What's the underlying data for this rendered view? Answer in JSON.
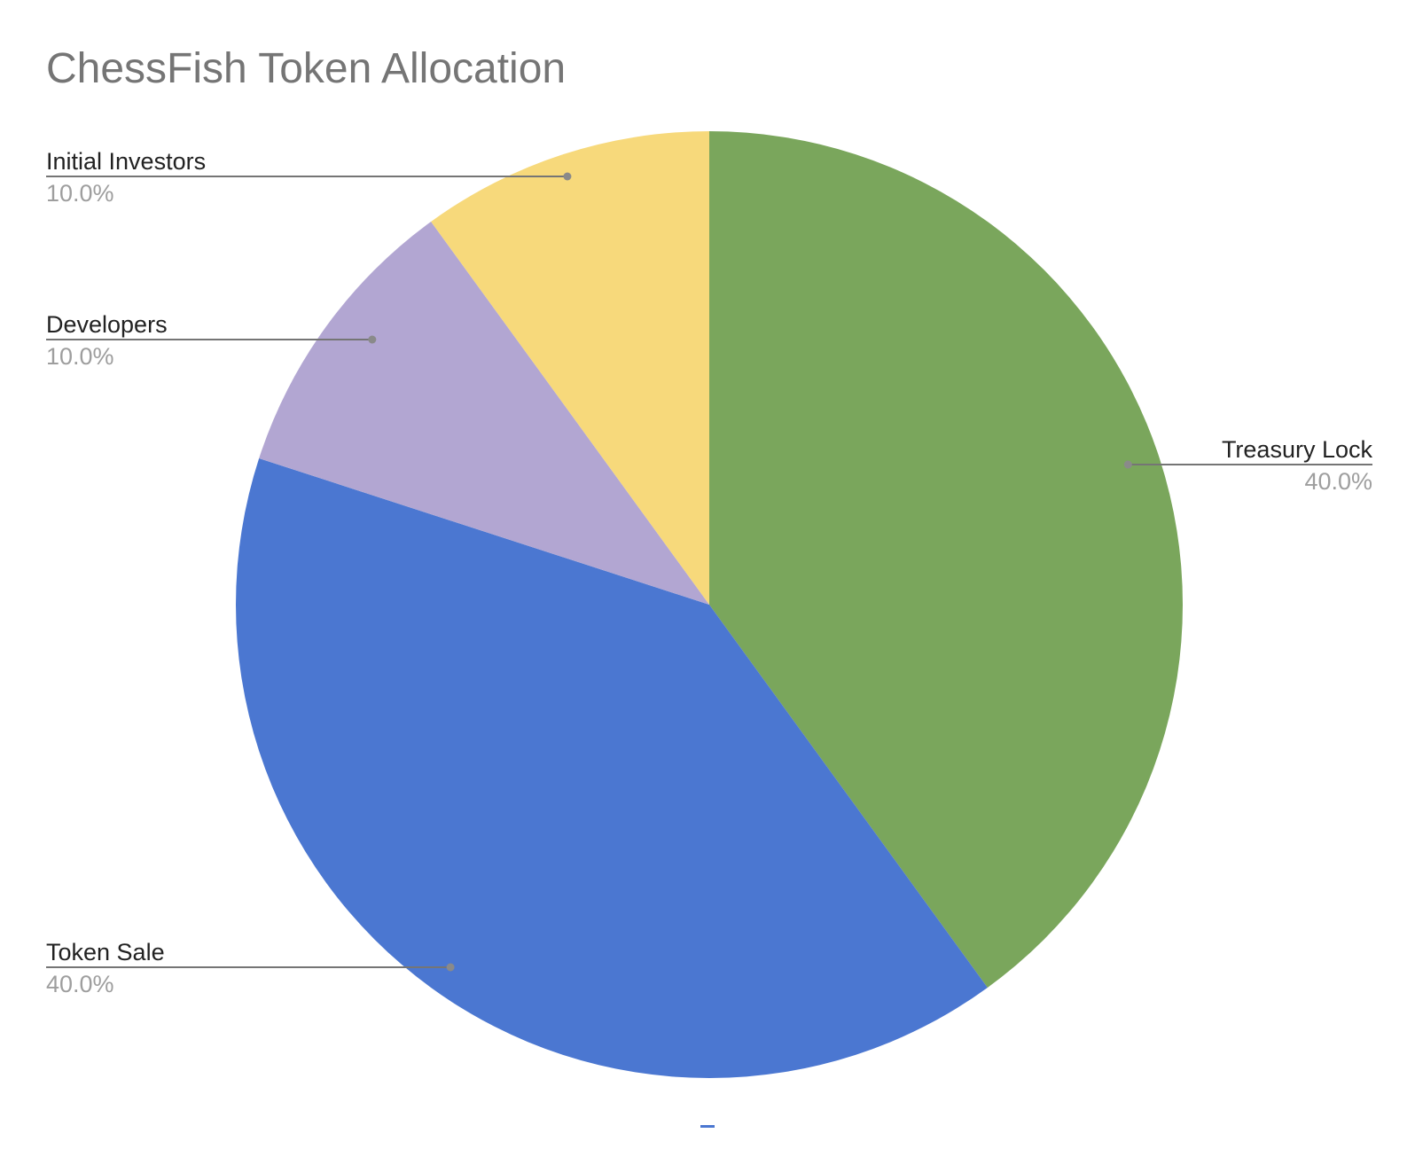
{
  "chart_data": {
    "type": "pie",
    "title": "ChessFish Token Allocation",
    "start_angle_deg": 0,
    "direction": "clockwise",
    "slices": [
      {
        "label": "Treasury Lock",
        "value": 40.0,
        "percent_label": "40.0%",
        "color": "#7aa65c"
      },
      {
        "label": "Token Sale",
        "value": 40.0,
        "percent_label": "40.0%",
        "color": "#4b77d1"
      },
      {
        "label": "Developers",
        "value": 10.0,
        "percent_label": "10.0%",
        "color": "#b2a6d2"
      },
      {
        "label": "Initial Investors",
        "value": 10.0,
        "percent_label": "10.0%",
        "color": "#f7d97b"
      }
    ],
    "legend": "none",
    "label_style": "leader-lines with category name and percentage"
  }
}
